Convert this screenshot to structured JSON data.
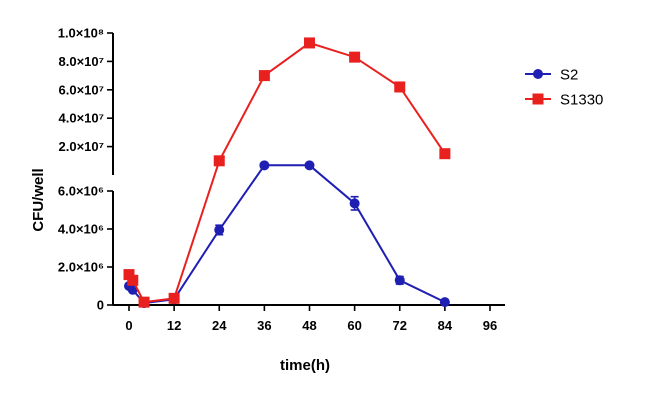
{
  "chart_data": {
    "type": "line",
    "xlabel": "time(h)",
    "ylabel": "CFU/well",
    "xlim": [
      0,
      96
    ],
    "x_ticks": [
      0,
      12,
      24,
      36,
      48,
      60,
      72,
      84,
      96
    ],
    "y_axis_break": {
      "lower_range": [
        0,
        6000000
      ],
      "upper_range": [
        0,
        100000000
      ],
      "lower_ticks": [
        {
          "value": 0,
          "label": "0"
        },
        {
          "value": 2000000,
          "label": "2.0×10⁶"
        },
        {
          "value": 4000000,
          "label": "4.0×10⁶"
        },
        {
          "value": 6000000,
          "label": "6.0×10⁶"
        }
      ],
      "upper_ticks": [
        {
          "value": 20000000,
          "label": "2.0×10⁷"
        },
        {
          "value": 40000000,
          "label": "4.0×10⁷"
        },
        {
          "value": 60000000,
          "label": "6.0×10⁷"
        },
        {
          "value": 80000000,
          "label": "8.0×10⁷"
        },
        {
          "value": 100000000,
          "label": "1.0×10⁸"
        }
      ]
    },
    "legend_position": "right",
    "series": [
      {
        "name": "S2",
        "color": "#1f1fb4",
        "marker": "circle",
        "x": [
          0,
          1,
          4,
          12,
          24,
          36,
          48,
          60,
          72,
          84
        ],
        "y": [
          1000000,
          800000,
          100000,
          300000,
          3950000,
          6800000,
          6800000,
          5350000,
          1300000,
          150000
        ],
        "error": [
          0,
          0,
          0,
          0,
          250000,
          0,
          0,
          350000,
          200000,
          0
        ]
      },
      {
        "name": "S1330",
        "color": "#e8211f",
        "marker": "square",
        "x": [
          0,
          1,
          4,
          12,
          24,
          36,
          48,
          60,
          72,
          84
        ],
        "y": [
          1600000,
          1300000,
          150000,
          350000,
          10000000,
          70000000,
          93000000,
          83000000,
          62000000,
          15000000
        ],
        "error": [
          0,
          0,
          0,
          0,
          0,
          2500000,
          0,
          0,
          0,
          0
        ]
      }
    ]
  }
}
